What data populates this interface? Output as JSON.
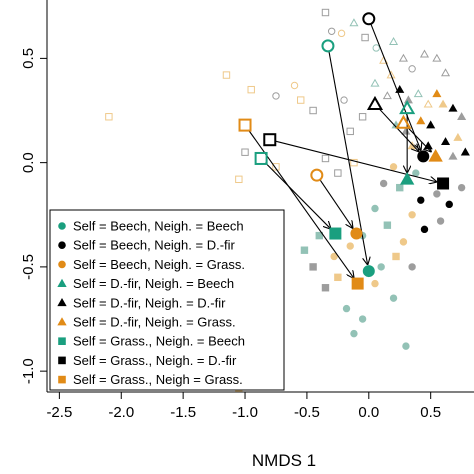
{
  "chart_data": {
    "type": "scatter",
    "xlabel": "NMDS 1",
    "ylabel": "",
    "xlim": [
      -2.6,
      0.85
    ],
    "ylim": [
      -1.1,
      0.78
    ],
    "xticks": [
      "-2.5",
      "-2.0",
      "-1.5",
      "-1.0",
      "-0.5",
      "0.0",
      "0.5"
    ],
    "yticks": [
      "-1.0",
      "-0.5",
      "0.0",
      "0.5"
    ],
    "colors": {
      "beech": "#1a9f7f",
      "dfir": "#000000",
      "grass": "#e18b17",
      "light_beech": "#93c2b6",
      "light_dfir": "#9d9d9d",
      "light_grass": "#efc98a"
    },
    "legend": {
      "position": "bottom-left",
      "entries": [
        {
          "label": "Self = Beech, Neigh. = Beech",
          "shape": "circle",
          "color": "beech"
        },
        {
          "label": "Self = Beech, Neigh. = D.-fir",
          "shape": "circle",
          "color": "dfir"
        },
        {
          "label": "Self = Beech, Neigh. = Grass.",
          "shape": "circle",
          "color": "grass"
        },
        {
          "label": "Self = D.-fir, Neigh. = Beech",
          "shape": "triangle",
          "color": "beech"
        },
        {
          "label": "Self = D.-fir, Neigh. = D.-fir",
          "shape": "triangle",
          "color": "dfir"
        },
        {
          "label": "Self = D.-fir, Neigh. = Grass.",
          "shape": "triangle",
          "color": "grass"
        },
        {
          "label": "Self = Grass., Neigh. = Beech",
          "shape": "square",
          "color": "beech"
        },
        {
          "label": "Self = Grass., Neigh. = D.-fir",
          "shape": "square",
          "color": "dfir"
        },
        {
          "label": "Self = Grass., Neigh = Grass.",
          "shape": "square",
          "color": "grass"
        }
      ]
    },
    "scatter_points": [
      {
        "x": -0.35,
        "y": 0.72,
        "shape": "square",
        "color": "light_dfir",
        "fill": "open"
      },
      {
        "x": -0.3,
        "y": 0.63,
        "shape": "circle",
        "color": "light_dfir",
        "fill": "open"
      },
      {
        "x": -0.22,
        "y": 0.62,
        "shape": "circle",
        "color": "light_grass",
        "fill": "open"
      },
      {
        "x": -0.12,
        "y": 0.67,
        "shape": "triangle",
        "color": "light_beech",
        "fill": "open"
      },
      {
        "x": -0.03,
        "y": 0.6,
        "shape": "square",
        "color": "light_dfir",
        "fill": "open"
      },
      {
        "x": 0.06,
        "y": 0.55,
        "shape": "circle",
        "color": "light_beech",
        "fill": "open"
      },
      {
        "x": 0.2,
        "y": 0.58,
        "shape": "triangle",
        "color": "light_beech",
        "fill": "open"
      },
      {
        "x": 0.12,
        "y": 0.49,
        "shape": "triangle",
        "color": "light_grass",
        "fill": "open"
      },
      {
        "x": 0.18,
        "y": 0.42,
        "shape": "triangle",
        "color": "light_grass",
        "fill": "open"
      },
      {
        "x": 0.28,
        "y": 0.5,
        "shape": "triangle",
        "color": "light_dfir",
        "fill": "open"
      },
      {
        "x": 0.35,
        "y": 0.45,
        "shape": "circle",
        "color": "light_dfir",
        "fill": "open"
      },
      {
        "x": 0.45,
        "y": 0.52,
        "shape": "triangle",
        "color": "light_dfir",
        "fill": "open"
      },
      {
        "x": 0.55,
        "y": 0.5,
        "shape": "triangle",
        "color": "light_dfir",
        "fill": "open"
      },
      {
        "x": 0.62,
        "y": 0.43,
        "shape": "triangle",
        "color": "light_dfir",
        "fill": "open"
      },
      {
        "x": -0.95,
        "y": 0.35,
        "shape": "square",
        "color": "light_grass",
        "fill": "open"
      },
      {
        "x": -0.75,
        "y": 0.32,
        "shape": "circle",
        "color": "light_dfir",
        "fill": "open"
      },
      {
        "x": -0.55,
        "y": 0.3,
        "shape": "square",
        "color": "light_grass",
        "fill": "open"
      },
      {
        "x": -0.6,
        "y": 0.37,
        "shape": "circle",
        "color": "light_grass",
        "fill": "open"
      },
      {
        "x": -0.45,
        "y": 0.25,
        "shape": "square",
        "color": "light_dfir",
        "fill": "open"
      },
      {
        "x": -0.2,
        "y": 0.3,
        "shape": "circle",
        "color": "light_dfir",
        "fill": "open"
      },
      {
        "x": -0.15,
        "y": 0.15,
        "shape": "square",
        "color": "light_dfir",
        "fill": "open"
      },
      {
        "x": -0.05,
        "y": 0.22,
        "shape": "square",
        "color": "light_dfir",
        "fill": "open"
      },
      {
        "x": 0.05,
        "y": 0.38,
        "shape": "triangle",
        "color": "light_beech",
        "fill": "open"
      },
      {
        "x": 0.15,
        "y": 0.32,
        "shape": "triangle",
        "color": "light_dfir",
        "fill": "open"
      },
      {
        "x": 0.25,
        "y": 0.35,
        "shape": "triangle",
        "color": "dfir",
        "fill": "solid"
      },
      {
        "x": 0.32,
        "y": 0.3,
        "shape": "triangle",
        "color": "light_dfir",
        "fill": "solid"
      },
      {
        "x": 0.4,
        "y": 0.33,
        "shape": "triangle",
        "color": "light_beech",
        "fill": "open"
      },
      {
        "x": 0.48,
        "y": 0.28,
        "shape": "triangle",
        "color": "light_grass",
        "fill": "open"
      },
      {
        "x": 0.55,
        "y": 0.33,
        "shape": "triangle",
        "color": "grass",
        "fill": "solid"
      },
      {
        "x": 0.6,
        "y": 0.28,
        "shape": "triangle",
        "color": "light_grass",
        "fill": "solid"
      },
      {
        "x": 0.68,
        "y": 0.26,
        "shape": "triangle",
        "color": "dfir",
        "fill": "solid"
      },
      {
        "x": 0.75,
        "y": 0.22,
        "shape": "triangle",
        "color": "light_dfir",
        "fill": "solid"
      },
      {
        "x": 0.72,
        "y": 0.12,
        "shape": "triangle",
        "color": "light_grass",
        "fill": "solid"
      },
      {
        "x": 0.62,
        "y": 0.1,
        "shape": "triangle",
        "color": "dfir",
        "fill": "solid"
      },
      {
        "x": 0.5,
        "y": 0.18,
        "shape": "triangle",
        "color": "dfir",
        "fill": "solid"
      },
      {
        "x": 0.42,
        "y": 0.2,
        "shape": "triangle",
        "color": "grass",
        "fill": "solid"
      },
      {
        "x": 0.3,
        "y": 0.15,
        "shape": "triangle",
        "color": "light_dfir",
        "fill": "solid"
      },
      {
        "x": 0.22,
        "y": 0.18,
        "shape": "triangle",
        "color": "light_beech",
        "fill": "solid"
      },
      {
        "x": 0.35,
        "y": 0.08,
        "shape": "triangle",
        "color": "light_grass",
        "fill": "solid"
      },
      {
        "x": 0.48,
        "y": 0.08,
        "shape": "triangle",
        "color": "dfir",
        "fill": "solid"
      },
      {
        "x": 0.68,
        "y": 0.03,
        "shape": "triangle",
        "color": "light_dfir",
        "fill": "solid"
      },
      {
        "x": 0.78,
        "y": 0.05,
        "shape": "triangle",
        "color": "dfir",
        "fill": "solid"
      },
      {
        "x": -1.0,
        "y": 0.05,
        "shape": "square",
        "color": "light_dfir",
        "fill": "open"
      },
      {
        "x": -1.05,
        "y": -0.08,
        "shape": "square",
        "color": "light_grass",
        "fill": "open"
      },
      {
        "x": -0.75,
        "y": -0.02,
        "shape": "square",
        "color": "light_grass",
        "fill": "open"
      },
      {
        "x": -0.35,
        "y": 0.02,
        "shape": "square",
        "color": "light_dfir",
        "fill": "open"
      },
      {
        "x": -0.25,
        "y": -0.05,
        "shape": "square",
        "color": "light_dfir",
        "fill": "open"
      },
      {
        "x": -0.12,
        "y": 0.0,
        "shape": "square",
        "color": "light_grass",
        "fill": "open"
      },
      {
        "x": -2.1,
        "y": 0.22,
        "shape": "square",
        "color": "light_grass",
        "fill": "open"
      },
      {
        "x": -1.15,
        "y": 0.42,
        "shape": "square",
        "color": "light_grass",
        "fill": "open"
      },
      {
        "x": 0.2,
        "y": -0.02,
        "shape": "circle",
        "color": "light_grass",
        "fill": "solid"
      },
      {
        "x": 0.12,
        "y": -0.1,
        "shape": "circle",
        "color": "light_dfir",
        "fill": "solid"
      },
      {
        "x": 0.25,
        "y": -0.12,
        "shape": "square",
        "color": "light_beech",
        "fill": "solid"
      },
      {
        "x": 0.38,
        "y": -0.05,
        "shape": "circle",
        "color": "light_beech",
        "fill": "solid"
      },
      {
        "x": 0.42,
        "y": -0.18,
        "shape": "circle",
        "color": "dfir",
        "fill": "solid"
      },
      {
        "x": 0.55,
        "y": -0.15,
        "shape": "circle",
        "color": "light_dfir",
        "fill": "solid"
      },
      {
        "x": 0.65,
        "y": -0.2,
        "shape": "circle",
        "color": "dfir",
        "fill": "solid"
      },
      {
        "x": 0.75,
        "y": -0.12,
        "shape": "circle",
        "color": "light_dfir",
        "fill": "solid"
      },
      {
        "x": 0.58,
        "y": -0.28,
        "shape": "circle",
        "color": "light_dfir",
        "fill": "solid"
      },
      {
        "x": 0.45,
        "y": -0.32,
        "shape": "circle",
        "color": "dfir",
        "fill": "solid"
      },
      {
        "x": 0.35,
        "y": -0.25,
        "shape": "circle",
        "color": "light_grass",
        "fill": "solid"
      },
      {
        "x": 0.28,
        "y": -0.38,
        "shape": "circle",
        "color": "light_grass",
        "fill": "solid"
      },
      {
        "x": 0.15,
        "y": -0.3,
        "shape": "square",
        "color": "light_beech",
        "fill": "solid"
      },
      {
        "x": 0.05,
        "y": -0.22,
        "shape": "circle",
        "color": "light_beech",
        "fill": "solid"
      },
      {
        "x": -0.05,
        "y": -0.35,
        "shape": "circle",
        "color": "light_beech",
        "fill": "solid"
      },
      {
        "x": -0.15,
        "y": -0.4,
        "shape": "circle",
        "color": "light_grass",
        "fill": "solid"
      },
      {
        "x": -0.28,
        "y": -0.45,
        "shape": "circle",
        "color": "light_grass",
        "fill": "solid"
      },
      {
        "x": -0.4,
        "y": -0.35,
        "shape": "square",
        "color": "light_beech",
        "fill": "solid"
      },
      {
        "x": -0.45,
        "y": -0.5,
        "shape": "square",
        "color": "light_dfir",
        "fill": "solid"
      },
      {
        "x": -0.52,
        "y": -0.42,
        "shape": "square",
        "color": "light_beech",
        "fill": "solid"
      },
      {
        "x": -0.35,
        "y": -0.6,
        "shape": "square",
        "color": "light_dfir",
        "fill": "solid"
      },
      {
        "x": -0.25,
        "y": -0.55,
        "shape": "square",
        "color": "light_grass",
        "fill": "solid"
      },
      {
        "x": -0.18,
        "y": -0.7,
        "shape": "circle",
        "color": "light_beech",
        "fill": "solid"
      },
      {
        "x": -0.05,
        "y": -0.75,
        "shape": "circle",
        "color": "light_beech",
        "fill": "solid"
      },
      {
        "x": -0.12,
        "y": -0.82,
        "shape": "circle",
        "color": "light_beech",
        "fill": "solid"
      },
      {
        "x": 0.2,
        "y": -0.65,
        "shape": "circle",
        "color": "light_beech",
        "fill": "solid"
      },
      {
        "x": 0.05,
        "y": -0.58,
        "shape": "circle",
        "color": "light_grass",
        "fill": "solid"
      },
      {
        "x": 0.35,
        "y": -0.5,
        "shape": "circle",
        "color": "light_dfir",
        "fill": "solid"
      },
      {
        "x": 0.22,
        "y": -0.45,
        "shape": "square",
        "color": "light_grass",
        "fill": "solid"
      },
      {
        "x": 0.1,
        "y": -0.5,
        "shape": "circle",
        "color": "light_beech",
        "fill": "solid"
      },
      {
        "x": 0.3,
        "y": -0.88,
        "shape": "circle",
        "color": "light_beech",
        "fill": "solid"
      },
      {
        "x": -1.1,
        "y": -0.35,
        "shape": "square",
        "color": "light_grass",
        "fill": "solid"
      },
      {
        "x": -1.05,
        "y": -1.08,
        "shape": "square",
        "color": "light_grass",
        "fill": "solid"
      }
    ],
    "key_points": [
      {
        "x": 0.0,
        "y": 0.69,
        "shape": "circle",
        "color": "dfir",
        "fill": "open"
      },
      {
        "x": -0.33,
        "y": 0.56,
        "shape": "circle",
        "color": "beech",
        "fill": "open"
      },
      {
        "x": -1.0,
        "y": 0.18,
        "shape": "square",
        "color": "grass",
        "fill": "open"
      },
      {
        "x": -0.8,
        "y": 0.11,
        "shape": "square",
        "color": "dfir",
        "fill": "open"
      },
      {
        "x": -0.87,
        "y": 0.02,
        "shape": "square",
        "color": "beech",
        "fill": "open"
      },
      {
        "x": -0.42,
        "y": -0.06,
        "shape": "circle",
        "color": "grass",
        "fill": "open"
      },
      {
        "x": 0.31,
        "y": 0.26,
        "shape": "triangle",
        "color": "beech",
        "fill": "open"
      },
      {
        "x": 0.05,
        "y": 0.28,
        "shape": "triangle",
        "color": "dfir",
        "fill": "open"
      },
      {
        "x": 0.28,
        "y": 0.19,
        "shape": "triangle",
        "color": "grass",
        "fill": "open"
      },
      {
        "x": 0.44,
        "y": 0.03,
        "shape": "circle",
        "color": "dfir",
        "fill": "solid"
      },
      {
        "x": 0.54,
        "y": 0.03,
        "shape": "triangle",
        "color": "grass",
        "fill": "solid"
      },
      {
        "x": 0.31,
        "y": -0.08,
        "shape": "triangle",
        "color": "beech",
        "fill": "solid"
      },
      {
        "x": 0.6,
        "y": -0.1,
        "shape": "square",
        "color": "dfir",
        "fill": "solid"
      },
      {
        "x": -0.27,
        "y": -0.34,
        "shape": "square",
        "color": "beech",
        "fill": "solid"
      },
      {
        "x": -0.1,
        "y": -0.34,
        "shape": "circle",
        "color": "grass",
        "fill": "solid"
      },
      {
        "x": 0.0,
        "y": -0.52,
        "shape": "circle",
        "color": "beech",
        "fill": "solid"
      },
      {
        "x": -0.09,
        "y": -0.58,
        "shape": "square",
        "color": "grass",
        "fill": "solid"
      }
    ],
    "arrows": [
      {
        "x0": 0.0,
        "y0": 0.69,
        "x1": 0.44,
        "y1": 0.03
      },
      {
        "x0": -0.33,
        "y0": 0.56,
        "x1": 0.0,
        "y1": -0.52
      },
      {
        "x0": -1.0,
        "y0": 0.18,
        "x1": -0.09,
        "y1": -0.58
      },
      {
        "x0": -0.8,
        "y0": 0.11,
        "x1": 0.6,
        "y1": -0.1
      },
      {
        "x0": -0.87,
        "y0": 0.02,
        "x1": -0.27,
        "y1": -0.34
      },
      {
        "x0": -0.42,
        "y0": -0.06,
        "x1": -0.1,
        "y1": -0.34
      },
      {
        "x0": 0.31,
        "y0": 0.26,
        "x1": 0.31,
        "y1": -0.08
      },
      {
        "x0": 0.05,
        "y0": 0.28,
        "x1": 0.44,
        "y1": 0.03
      },
      {
        "x0": 0.28,
        "y0": 0.19,
        "x1": 0.54,
        "y1": 0.03
      }
    ],
    "grid": false
  }
}
